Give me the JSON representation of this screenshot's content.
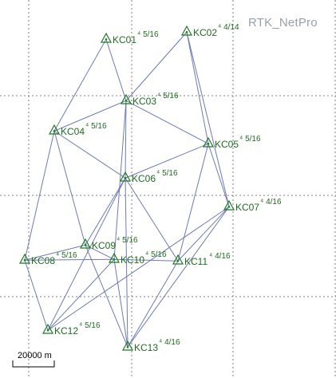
{
  "header": {
    "app_title": "RTK_NetPro"
  },
  "scale": {
    "label": "20000 m"
  },
  "colors": {
    "edge": "#6e7ab4",
    "station": "#1f7a1f",
    "grid": "#7f7f7f",
    "title": "#9aa0aa"
  },
  "stations": [
    {
      "id": "KC01",
      "name": "KC01",
      "note": "5/16"
    },
    {
      "id": "KC02",
      "name": "KC02",
      "note": "4/14"
    },
    {
      "id": "KC03",
      "name": "KC03",
      "note": "5/16"
    },
    {
      "id": "KC04",
      "name": "KC04",
      "note": "5/16"
    },
    {
      "id": "KC05",
      "name": "KC05",
      "note": "5/16"
    },
    {
      "id": "KC06",
      "name": "KC06",
      "note": "5/16"
    },
    {
      "id": "KC07",
      "name": "KC07",
      "note": "4/16"
    },
    {
      "id": "KC08",
      "name": "KC08",
      "note": "5/16"
    },
    {
      "id": "KC09",
      "name": "KC09",
      "note": "5/16"
    },
    {
      "id": "KC10",
      "name": "KC10",
      "note": "5/16"
    },
    {
      "id": "KC11",
      "name": "KC11",
      "note": "4/16"
    },
    {
      "id": "KC12",
      "name": "KC12",
      "note": "5/16"
    },
    {
      "id": "KC13",
      "name": "KC13",
      "note": "4/16"
    }
  ],
  "baselines": [
    [
      "KC01",
      "KC04"
    ],
    [
      "KC01",
      "KC03"
    ],
    [
      "KC02",
      "KC03"
    ],
    [
      "KC02",
      "KC05"
    ],
    [
      "KC02",
      "KC07"
    ],
    [
      "KC03",
      "KC04"
    ],
    [
      "KC03",
      "KC05"
    ],
    [
      "KC03",
      "KC06"
    ],
    [
      "KC03",
      "KC10"
    ],
    [
      "KC04",
      "KC06"
    ],
    [
      "KC04",
      "KC08"
    ],
    [
      "KC04",
      "KC09"
    ],
    [
      "KC05",
      "KC06"
    ],
    [
      "KC05",
      "KC11"
    ],
    [
      "KC05",
      "KC07"
    ],
    [
      "KC06",
      "KC09"
    ],
    [
      "KC06",
      "KC11"
    ],
    [
      "KC06",
      "KC12"
    ],
    [
      "KC06",
      "KC13"
    ],
    [
      "KC07",
      "KC11"
    ],
    [
      "KC07",
      "KC13"
    ],
    [
      "KC07",
      "KC12"
    ],
    [
      "KC08",
      "KC09"
    ],
    [
      "KC08",
      "KC10"
    ],
    [
      "KC08",
      "KC12"
    ],
    [
      "KC09",
      "KC10"
    ],
    [
      "KC09",
      "KC13"
    ],
    [
      "KC10",
      "KC11"
    ],
    [
      "KC10",
      "KC12"
    ],
    [
      "KC10",
      "KC13"
    ],
    [
      "KC11",
      "KC13"
    ]
  ]
}
